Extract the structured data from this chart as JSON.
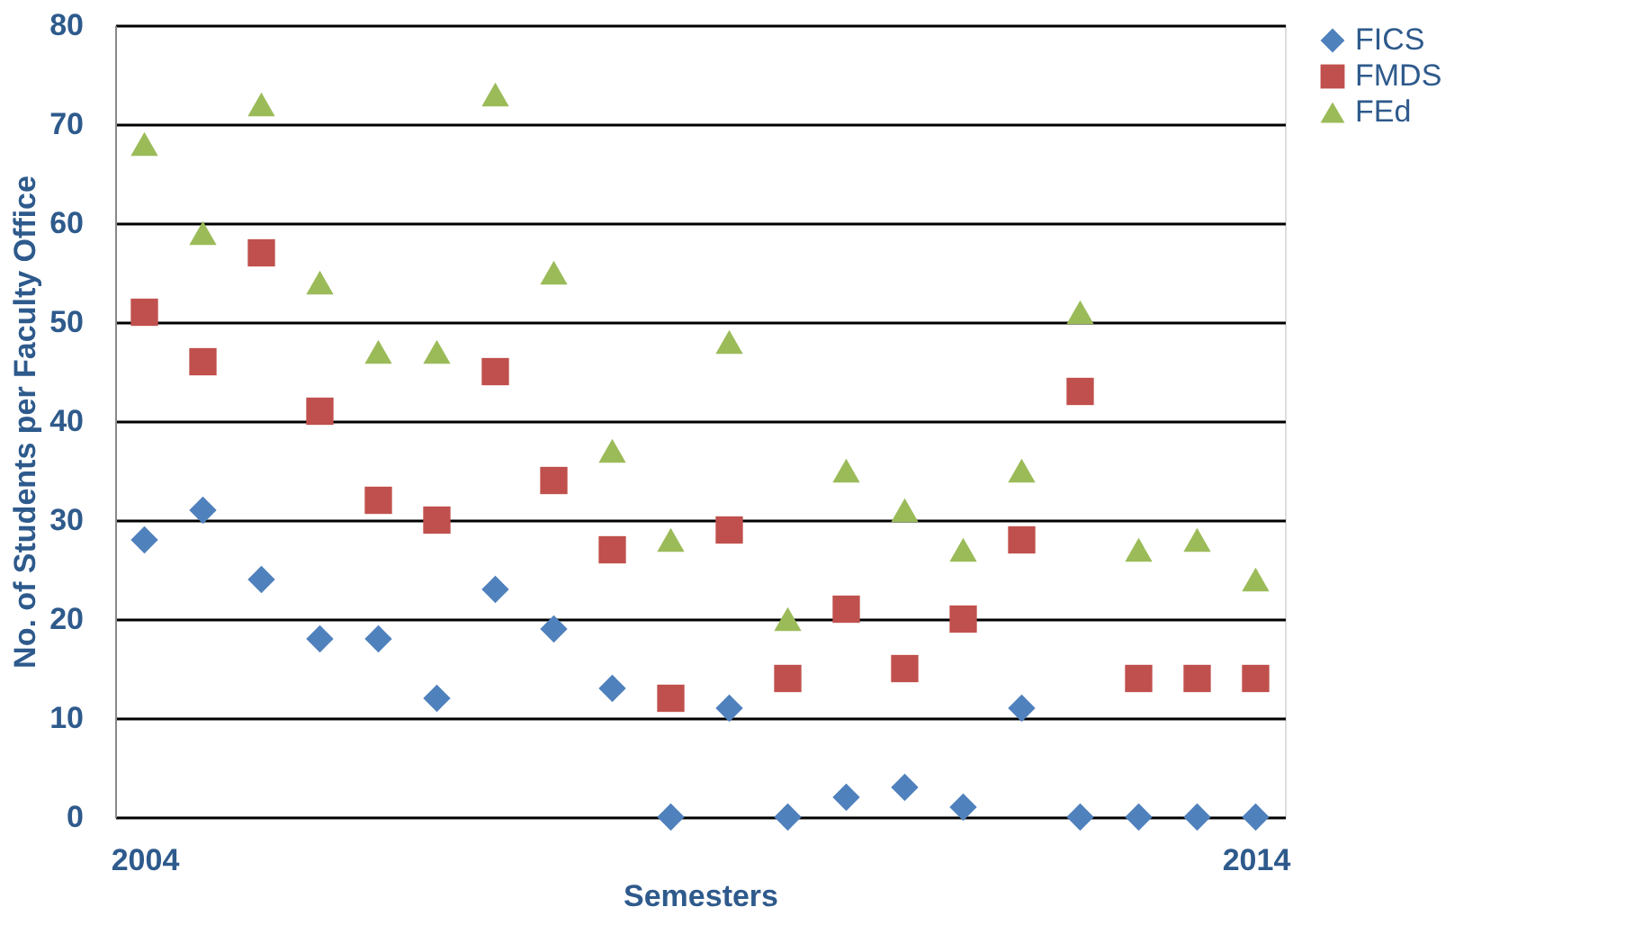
{
  "chart_data": {
    "type": "scatter",
    "xlabel": "Semesters",
    "ylabel": "No. of Students per Faculty Office",
    "categories": [
      "2004",
      null,
      null,
      null,
      null,
      null,
      null,
      null,
      null,
      null,
      null,
      null,
      null,
      null,
      null,
      null,
      null,
      null,
      null,
      "2014"
    ],
    "series": [
      {
        "name": "FICS",
        "color": "#4f81bd",
        "marker": "diamond",
        "values": [
          28,
          31,
          24,
          18,
          18,
          12,
          23,
          19,
          13,
          0,
          11,
          0,
          2,
          3,
          1,
          11,
          0,
          0,
          0,
          0
        ]
      },
      {
        "name": "FMDS",
        "color": "#c0504d",
        "marker": "square",
        "values": [
          51,
          46,
          57,
          41,
          32,
          30,
          45,
          34,
          27,
          12,
          29,
          14,
          21,
          15,
          20,
          28,
          43,
          14,
          14,
          14
        ]
      },
      {
        "name": "FEd",
        "color": "#9bbb59",
        "marker": "triangle",
        "values": [
          68,
          59,
          72,
          54,
          47,
          47,
          73,
          55,
          37,
          28,
          48,
          20,
          35,
          31,
          27,
          35,
          51,
          27,
          28,
          24
        ]
      }
    ],
    "ylim": [
      0,
      80
    ],
    "yticks": [
      0,
      10,
      20,
      30,
      40,
      50,
      60,
      70,
      80
    ],
    "grid": "y",
    "legend": "right"
  }
}
